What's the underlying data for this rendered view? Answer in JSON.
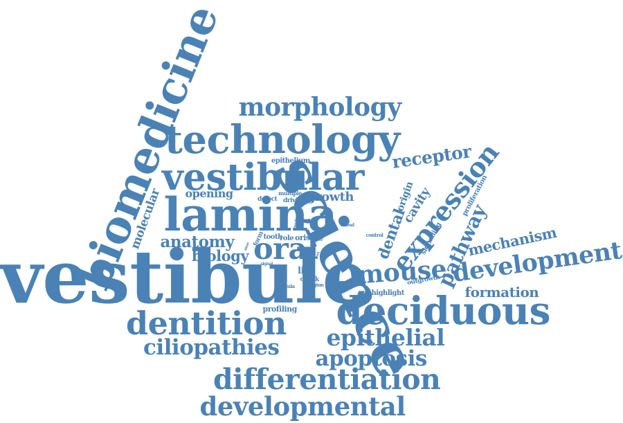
{
  "color": "#4a82b6",
  "words": [
    "vestibule",
    "science",
    "biomedicine",
    "lamina",
    "technology",
    "vestibular",
    "deciduous",
    "dentition",
    "expression",
    "development",
    "differentiation",
    "developmental",
    "morphology",
    "oral",
    "mouse",
    "ciliopathies",
    "epithelial",
    "apoptosis",
    "anatomy",
    "pathway",
    "receptor",
    "mechanism",
    "formation",
    "dental",
    "biology",
    "molecular",
    "growth",
    "cavity",
    "opening",
    "origin",
    "epithelium",
    "proliferation",
    "signalling",
    "outgrowth",
    "highlight",
    "profiling",
    "life",
    "tooth",
    "role",
    "oris",
    "cheek",
    "frenula",
    "region",
    "defect",
    "multiple",
    "driving",
    "form",
    "mutant",
    "control",
    "extend",
    "paper",
    "signal",
    "sinus",
    "level"
  ]
}
